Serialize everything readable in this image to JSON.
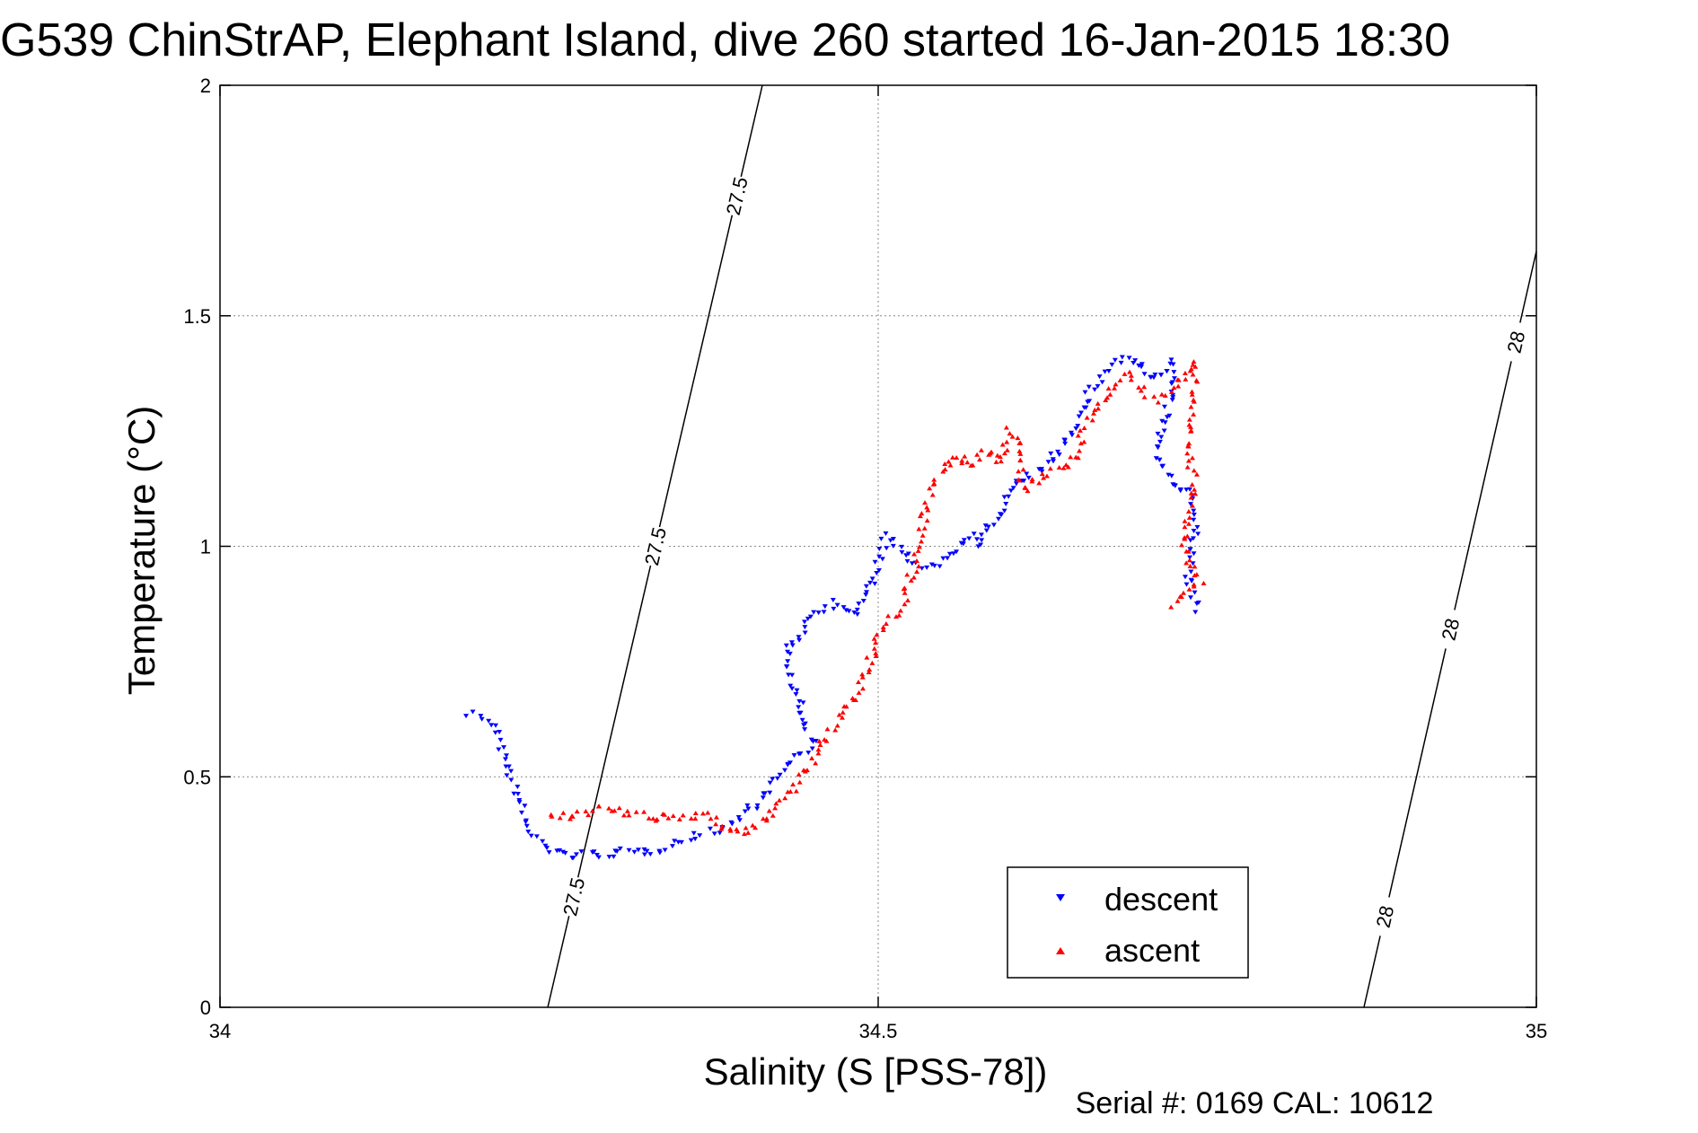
{
  "chart_data": {
    "type": "scatter",
    "title": "G539 ChinStrAP, Elephant Island, dive 260 started 16-Jan-2015 18:30",
    "xlabel": "Salinity (S [PSS-78])",
    "ylabel": "Temperature (°C)",
    "xlim": [
      34,
      35
    ],
    "ylim": [
      0,
      2
    ],
    "xticks": [
      34,
      34.5,
      35
    ],
    "xtick_labels": [
      "34",
      "34.5",
      "35"
    ],
    "yticks": [
      0,
      0.5,
      1,
      1.5,
      2
    ],
    "ytick_labels": [
      "0",
      "0.5",
      "1",
      "1.5",
      "2"
    ],
    "grid": true,
    "legend_position": "lower-right",
    "footer": "Serial #: 0169 CAL: 10612",
    "series": [
      {
        "name": "descent",
        "color": "#0000ff",
        "marker": "triangle-down",
        "path": [
          [
            34.19,
            0.64
          ],
          [
            34.2,
            0.63
          ],
          [
            34.21,
            0.6
          ],
          [
            34.215,
            0.55
          ],
          [
            34.22,
            0.5
          ],
          [
            34.225,
            0.47
          ],
          [
            34.23,
            0.42
          ],
          [
            34.235,
            0.38
          ],
          [
            34.25,
            0.34
          ],
          [
            34.27,
            0.33
          ],
          [
            34.3,
            0.335
          ],
          [
            34.33,
            0.34
          ],
          [
            34.35,
            0.36
          ],
          [
            34.37,
            0.38
          ],
          [
            34.39,
            0.4
          ],
          [
            34.4,
            0.43
          ],
          [
            34.41,
            0.45
          ],
          [
            34.42,
            0.49
          ],
          [
            34.43,
            0.52
          ],
          [
            34.44,
            0.55
          ],
          [
            34.45,
            0.57
          ],
          [
            34.44,
            0.66
          ],
          [
            34.43,
            0.76
          ],
          [
            34.45,
            0.86
          ],
          [
            34.47,
            0.88
          ],
          [
            34.48,
            0.85
          ],
          [
            34.49,
            0.9
          ],
          [
            34.5,
            0.95
          ],
          [
            34.505,
            1.02
          ],
          [
            34.515,
            1.0
          ],
          [
            34.525,
            0.97
          ],
          [
            34.535,
            0.95
          ],
          [
            34.545,
            0.96
          ],
          [
            34.555,
            0.99
          ],
          [
            34.57,
            1.02
          ],
          [
            34.575,
            1.0
          ],
          [
            34.59,
            1.06
          ],
          [
            34.6,
            1.12
          ],
          [
            34.61,
            1.14
          ],
          [
            34.62,
            1.16
          ],
          [
            34.63,
            1.18
          ],
          [
            34.64,
            1.22
          ],
          [
            34.65,
            1.27
          ],
          [
            34.66,
            1.33
          ],
          [
            34.67,
            1.37
          ],
          [
            34.68,
            1.4
          ],
          [
            34.69,
            1.41
          ],
          [
            34.7,
            1.39
          ],
          [
            34.705,
            1.37
          ],
          [
            34.71,
            1.36
          ],
          [
            34.72,
            1.38
          ],
          [
            34.725,
            1.4
          ],
          [
            34.72,
            1.3
          ],
          [
            34.71,
            1.2
          ],
          [
            34.72,
            1.15
          ],
          [
            34.73,
            1.12
          ],
          [
            34.735,
            1.13
          ],
          [
            34.74,
            1.1
          ],
          [
            34.74,
            1.0
          ],
          [
            34.735,
            0.92
          ],
          [
            34.74,
            0.88
          ],
          [
            34.745,
            0.85
          ]
        ]
      },
      {
        "name": "ascent",
        "color": "#ff0000",
        "marker": "triangle-up",
        "path": [
          [
            34.25,
            0.41
          ],
          [
            34.27,
            0.42
          ],
          [
            34.29,
            0.43
          ],
          [
            34.31,
            0.42
          ],
          [
            34.33,
            0.41
          ],
          [
            34.35,
            0.41
          ],
          [
            34.37,
            0.42
          ],
          [
            34.38,
            0.4
          ],
          [
            34.39,
            0.38
          ],
          [
            34.4,
            0.38
          ],
          [
            34.41,
            0.4
          ],
          [
            34.42,
            0.43
          ],
          [
            34.43,
            0.45
          ],
          [
            34.44,
            0.49
          ],
          [
            34.45,
            0.53
          ],
          [
            34.46,
            0.58
          ],
          [
            34.47,
            0.62
          ],
          [
            34.48,
            0.66
          ],
          [
            34.49,
            0.72
          ],
          [
            34.5,
            0.8
          ],
          [
            34.51,
            0.84
          ],
          [
            34.52,
            0.88
          ],
          [
            34.525,
            0.93
          ],
          [
            34.53,
            0.98
          ],
          [
            34.535,
            1.06
          ],
          [
            34.54,
            1.12
          ],
          [
            34.55,
            1.17
          ],
          [
            34.56,
            1.2
          ],
          [
            34.565,
            1.18
          ],
          [
            34.57,
            1.17
          ],
          [
            34.58,
            1.2
          ],
          [
            34.585,
            1.21
          ],
          [
            34.59,
            1.18
          ],
          [
            34.595,
            1.2
          ],
          [
            34.6,
            1.25
          ],
          [
            34.605,
            1.24
          ],
          [
            34.61,
            1.12
          ],
          [
            34.62,
            1.14
          ],
          [
            34.63,
            1.16
          ],
          [
            34.64,
            1.17
          ],
          [
            34.65,
            1.19
          ],
          [
            34.655,
            1.24
          ],
          [
            34.66,
            1.28
          ],
          [
            34.67,
            1.32
          ],
          [
            34.68,
            1.35
          ],
          [
            34.69,
            1.37
          ],
          [
            34.7,
            1.34
          ],
          [
            34.71,
            1.32
          ],
          [
            34.72,
            1.33
          ],
          [
            34.73,
            1.36
          ],
          [
            34.74,
            1.4
          ],
          [
            34.74,
            1.3
          ],
          [
            34.735,
            1.2
          ],
          [
            34.74,
            1.14
          ],
          [
            34.735,
            1.05
          ],
          [
            34.73,
            1.0
          ],
          [
            34.74,
            0.95
          ],
          [
            34.745,
            0.92
          ],
          [
            34.73,
            0.89
          ],
          [
            34.72,
            0.87
          ]
        ]
      }
    ],
    "isopycnals": [
      {
        "label": "27.5",
        "from": [
          34.249,
          0
        ],
        "to": [
          34.412,
          2
        ]
      },
      {
        "label": "28",
        "from": [
          34.869,
          0
        ],
        "to": [
          35,
          1.64
        ]
      }
    ]
  }
}
